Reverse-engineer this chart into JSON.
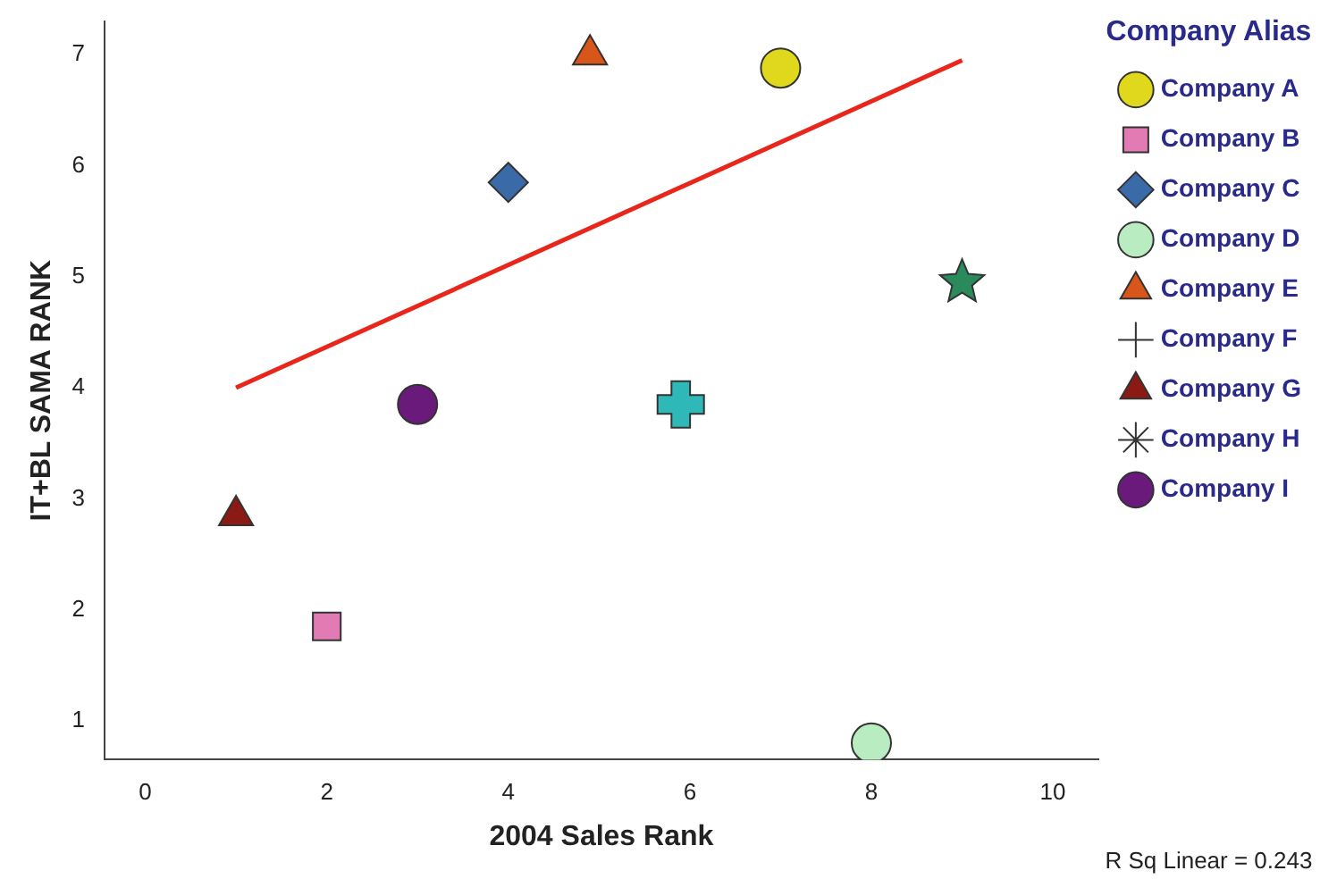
{
  "chart_data": {
    "type": "scatter",
    "xlabel": "2004 Sales Rank",
    "ylabel": "IT+BL SAMA RANK",
    "legend_title": "Company Alias",
    "legend": "right",
    "grid": false,
    "xlim": [
      -0.45,
      10.5
    ],
    "xticks": [
      0,
      2,
      4,
      6,
      8,
      10
    ],
    "ylim": [
      0.65,
      7.3
    ],
    "yticks": [
      1,
      2,
      3,
      4,
      5,
      6,
      7
    ],
    "annotations": [
      "R Sq Linear = 0.243"
    ],
    "series": [
      {
        "name": "Company A",
        "color": "#e0d81c",
        "marker": "circle",
        "x": [
          7
        ],
        "values": [
          6.88
        ]
      },
      {
        "name": "Company B",
        "color": "#e27bb4",
        "marker": "square",
        "x": [
          2
        ],
        "values": [
          1.85
        ]
      },
      {
        "name": "Company C",
        "color": "#3a6aa8",
        "marker": "diamond",
        "x": [
          4
        ],
        "values": [
          5.85
        ]
      },
      {
        "name": "Company D",
        "color": "#b9ecc0",
        "marker": "circle",
        "x": [
          8
        ],
        "values": [
          0.8
        ]
      },
      {
        "name": "Company E",
        "color": "#d9561a",
        "marker": "triangle",
        "x": [
          4.9
        ],
        "values": [
          7.0
        ]
      },
      {
        "name": "Company F",
        "color": "#2fb8b8",
        "marker": "cross",
        "x": [
          5.9
        ],
        "values": [
          3.85
        ]
      },
      {
        "name": "Company G",
        "color": "#8b1a14",
        "marker": "triangle",
        "x": [
          1
        ],
        "values": [
          2.85
        ]
      },
      {
        "name": "Company H",
        "color": "#2a8a5c",
        "marker": "star",
        "x": [
          9
        ],
        "values": [
          4.95
        ]
      },
      {
        "name": "Company I",
        "color": "#6a1a7a",
        "marker": "circle",
        "x": [
          3
        ],
        "values": [
          3.85
        ]
      },
      {
        "type": "line",
        "color": "#e8261c",
        "marker": "none",
        "x": [
          1,
          9
        ],
        "values": [
          4.0,
          6.95
        ]
      }
    ]
  }
}
